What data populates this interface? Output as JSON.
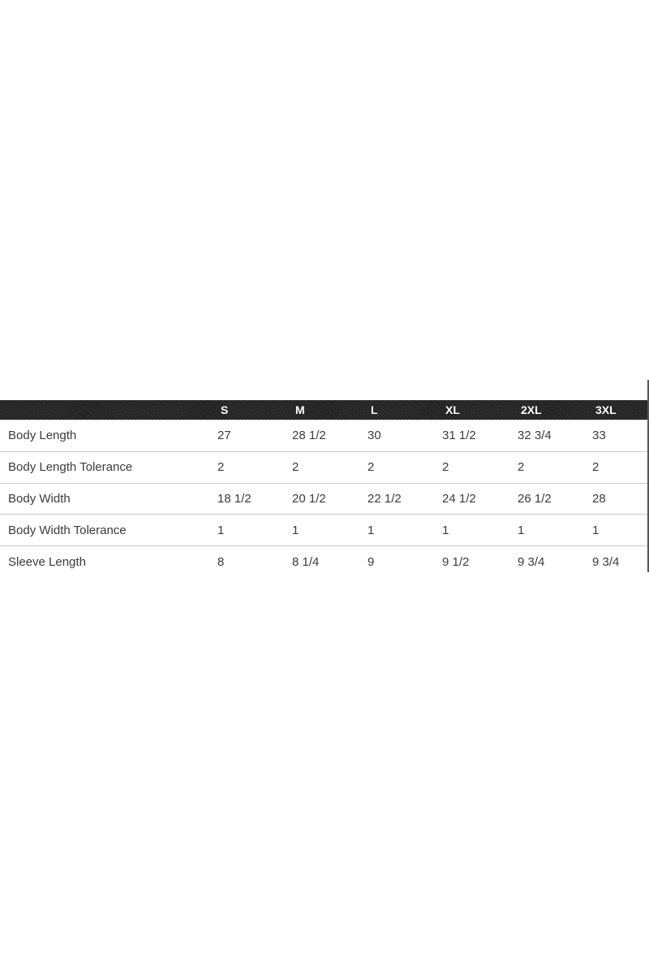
{
  "page": {
    "background": "#ffffff"
  },
  "size_chart": {
    "header": {
      "corner_label": "",
      "columns": [
        "S",
        "M",
        "L",
        "XL",
        "2XL",
        "3XL"
      ],
      "background": "#1e1e1e",
      "text_color": "#ffffff"
    },
    "rows": [
      {
        "label": "Body Length",
        "values": [
          "27",
          "28 1/2",
          "30",
          "31 1/2",
          "32 3/4",
          "33"
        ]
      },
      {
        "label": "Body Length Tolerance",
        "values": [
          "2",
          "2",
          "2",
          "2",
          "2",
          "2"
        ]
      },
      {
        "label": "Body Width",
        "values": [
          "18 1/2",
          "20 1/2",
          "22 1/2",
          "24 1/2",
          "26 1/2",
          "28"
        ]
      },
      {
        "label": "Body Width Tolerance",
        "values": [
          "1",
          "1",
          "1",
          "1",
          "1",
          "1"
        ]
      },
      {
        "label": "Sleeve Length",
        "values": [
          "8",
          "8 1/4",
          "9",
          "9 1/2",
          "9 3/4",
          "9 3/4"
        ]
      }
    ],
    "divider_color": "#cbcbcb",
    "body_text_color": "#3b3b3b"
  },
  "scrollbar": {
    "color": "#565656"
  }
}
